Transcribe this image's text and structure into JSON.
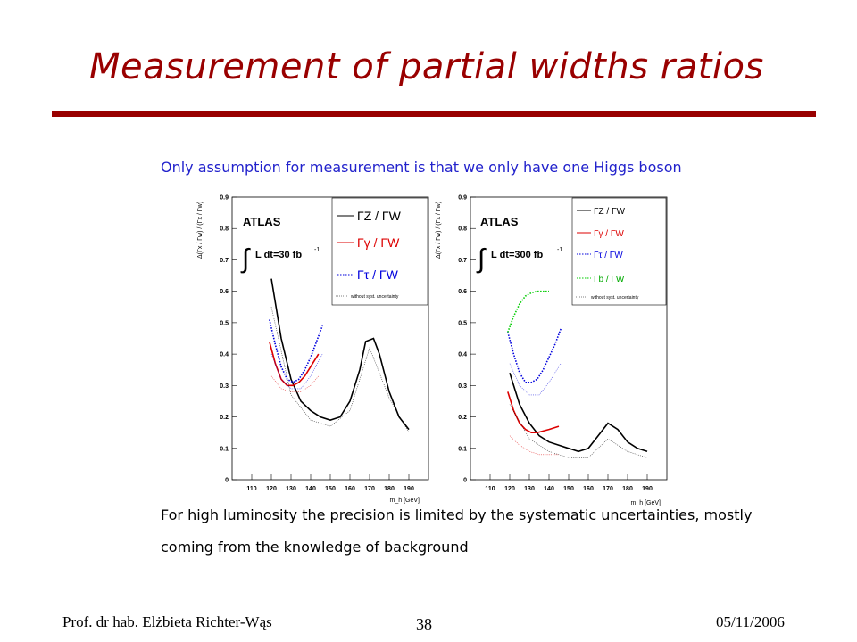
{
  "slide": {
    "title": "Measurement of partial widths ratios",
    "subtitle": "Only assumption for measurement is that we only have one Higgs boson",
    "body_line1": "For high luminosity the precision is limited by the systematic uncertainties, mostly",
    "body_line2": "coming from the knowledge of background",
    "footer_author": "Prof. dr hab. Elżbieta Richter-Wąs",
    "page_number": "38",
    "date": "05/11/2006",
    "accent_color": "#990000"
  },
  "chart_data": [
    {
      "type": "line",
      "experiment_label": "ATLAS",
      "luminosity_label": "L dt=30 fb",
      "luminosity_exp": "-1",
      "ylabel": "Δ(Γx / Γw) / (Γx / Γw)",
      "xlabel": "m_h [GeV]",
      "xlim": [
        100,
        200
      ],
      "ylim": [
        0,
        0.9
      ],
      "x_ticks": [
        110,
        120,
        130,
        140,
        150,
        160,
        170,
        180,
        190
      ],
      "y_ticks": [
        0,
        0.1,
        0.2,
        0.3,
        0.4,
        0.5,
        0.6,
        0.7,
        0.8,
        0.9
      ],
      "legend_position": "top-right",
      "legend_note": "without syst. uncertainty",
      "series": [
        {
          "name": "ΓZ / ΓW",
          "color": "#000000",
          "style": "solid",
          "x": [
            120,
            125,
            130,
            135,
            140,
            145,
            150,
            155,
            160,
            165,
            168,
            172,
            175,
            180,
            185,
            190
          ],
          "y": [
            0.64,
            0.45,
            0.32,
            0.25,
            0.22,
            0.2,
            0.19,
            0.2,
            0.25,
            0.35,
            0.44,
            0.45,
            0.4,
            0.28,
            0.2,
            0.16
          ]
        },
        {
          "name": "Γγ / ΓW",
          "color": "#dd0000",
          "style": "solid",
          "x": [
            119,
            122,
            125,
            128,
            131,
            134,
            137,
            140,
            144
          ],
          "y": [
            0.44,
            0.37,
            0.32,
            0.3,
            0.3,
            0.31,
            0.33,
            0.36,
            0.4
          ]
        },
        {
          "name": "Γτ / ΓW",
          "color": "#0000dd",
          "style": "dotted",
          "x": [
            119,
            122,
            125,
            128,
            131,
            134,
            137,
            140,
            143,
            146
          ],
          "y": [
            0.51,
            0.43,
            0.36,
            0.32,
            0.31,
            0.32,
            0.35,
            0.39,
            0.44,
            0.49
          ]
        },
        {
          "name": "ΓZ / ΓW (no syst.)",
          "color": "#000000",
          "style": "thin",
          "x": [
            120,
            130,
            140,
            150,
            160,
            170,
            180,
            190
          ],
          "y": [
            0.55,
            0.27,
            0.19,
            0.17,
            0.22,
            0.42,
            0.26,
            0.15
          ]
        },
        {
          "name": "Γγ / ΓW (no syst.)",
          "color": "#dd0000",
          "style": "thin",
          "x": [
            120,
            125,
            130,
            135,
            140,
            144
          ],
          "y": [
            0.33,
            0.29,
            0.28,
            0.28,
            0.3,
            0.33
          ]
        },
        {
          "name": "Γτ / ΓW (no syst.)",
          "color": "#0000dd",
          "style": "thin",
          "x": [
            120,
            125,
            130,
            135,
            140,
            146
          ],
          "y": [
            0.4,
            0.32,
            0.29,
            0.29,
            0.33,
            0.4
          ]
        }
      ]
    },
    {
      "type": "line",
      "experiment_label": "ATLAS",
      "luminosity_label": "L dt=300 fb",
      "luminosity_exp": "-1",
      "ylabel": "Δ(Γx / Γw) / (Γx / Γw)",
      "xlabel": "m_h [GeV]",
      "xlim": [
        100,
        200
      ],
      "ylim": [
        0,
        0.9
      ],
      "x_ticks": [
        110,
        120,
        130,
        140,
        150,
        160,
        170,
        180,
        190
      ],
      "y_ticks": [
        0,
        0.1,
        0.2,
        0.3,
        0.4,
        0.5,
        0.6,
        0.7,
        0.8,
        0.9
      ],
      "legend_position": "top-right",
      "legend_note": "without syst. uncertainty",
      "series": [
        {
          "name": "ΓZ / ΓW",
          "color": "#000000",
          "style": "solid",
          "x": [
            120,
            125,
            130,
            135,
            140,
            145,
            150,
            155,
            160,
            165,
            170,
            175,
            180,
            185,
            190
          ],
          "y": [
            0.34,
            0.24,
            0.18,
            0.14,
            0.12,
            0.11,
            0.1,
            0.09,
            0.1,
            0.14,
            0.18,
            0.16,
            0.12,
            0.1,
            0.09
          ]
        },
        {
          "name": "Γγ / ΓW",
          "color": "#dd0000",
          "style": "solid",
          "x": [
            119,
            122,
            125,
            128,
            131,
            134,
            137,
            140,
            145
          ],
          "y": [
            0.28,
            0.22,
            0.18,
            0.16,
            0.15,
            0.15,
            0.155,
            0.16,
            0.17
          ]
        },
        {
          "name": "Γτ / ΓW",
          "color": "#0000dd",
          "style": "dotted",
          "x": [
            119,
            122,
            125,
            128,
            131,
            134,
            137,
            140,
            143,
            146
          ],
          "y": [
            0.47,
            0.4,
            0.34,
            0.31,
            0.31,
            0.32,
            0.35,
            0.39,
            0.43,
            0.48
          ]
        },
        {
          "name": "Γb / ΓW",
          "color": "#00cc00",
          "style": "dotted",
          "x": [
            119,
            122,
            125,
            128,
            131,
            134,
            137,
            140
          ],
          "y": [
            0.47,
            0.52,
            0.56,
            0.585,
            0.595,
            0.6,
            0.6,
            0.6
          ]
        },
        {
          "name": "ΓZ / ΓW (no syst.)",
          "color": "#000000",
          "style": "thin",
          "x": [
            120,
            130,
            140,
            150,
            160,
            170,
            180,
            190
          ],
          "y": [
            0.24,
            0.13,
            0.09,
            0.07,
            0.07,
            0.13,
            0.09,
            0.07
          ]
        },
        {
          "name": "Γγ / ΓW (no syst.)",
          "color": "#dd0000",
          "style": "thin",
          "x": [
            120,
            125,
            130,
            135,
            140,
            145
          ],
          "y": [
            0.14,
            0.11,
            0.09,
            0.08,
            0.08,
            0.08
          ]
        },
        {
          "name": "Γτ / ΓW (no syst.)",
          "color": "#0000dd",
          "style": "thin",
          "x": [
            120,
            125,
            130,
            135,
            140,
            146
          ],
          "y": [
            0.37,
            0.3,
            0.27,
            0.27,
            0.31,
            0.37
          ]
        }
      ]
    }
  ]
}
